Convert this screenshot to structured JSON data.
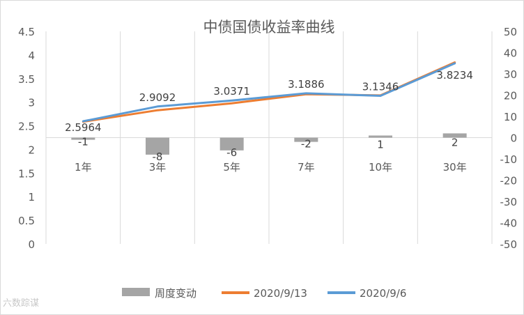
{
  "chart_data": {
    "type": "bar+line",
    "title": "中债国债收益率曲线",
    "categories": [
      "1年",
      "3年",
      "5年",
      "7年",
      "10年",
      "30年"
    ],
    "left_axis": {
      "min": 0,
      "max": 4.5,
      "step": 0.5,
      "ticks": [
        "0",
        "0.5",
        "1",
        "1.5",
        "2",
        "2.5",
        "3",
        "3.5",
        "4",
        "4.5"
      ]
    },
    "right_axis": {
      "min": -50,
      "max": 50,
      "step": 10,
      "ticks": [
        "-50",
        "-40",
        "-30",
        "-20",
        "-10",
        "0",
        "10",
        "20",
        "30",
        "40",
        "50"
      ]
    },
    "bars": {
      "name": "周度变动",
      "axis": "right",
      "color": "#a5a5a5",
      "values": [
        -1,
        -8,
        -6,
        -2,
        1,
        2
      ],
      "labels": [
        "-1",
        "-8",
        "-6",
        "-2",
        "1",
        "2"
      ]
    },
    "series": [
      {
        "name": "2020/9/13",
        "axis": "left",
        "color": "#ed7d31",
        "values": [
          2.5864,
          2.8292,
          2.9771,
          3.1686,
          3.1446,
          3.8434
        ]
      },
      {
        "name": "2020/9/6",
        "axis": "left",
        "color": "#5b9bd5",
        "values": [
          2.5964,
          2.9092,
          3.0371,
          3.1886,
          3.1346,
          3.8234
        ],
        "labels": [
          "2.5964",
          "2.9092",
          "3.0371",
          "3.1886",
          "3.1346",
          "3.8234"
        ]
      }
    ],
    "grid": "vertical",
    "legend_position": "bottom"
  },
  "watermark": "六数踪谋"
}
